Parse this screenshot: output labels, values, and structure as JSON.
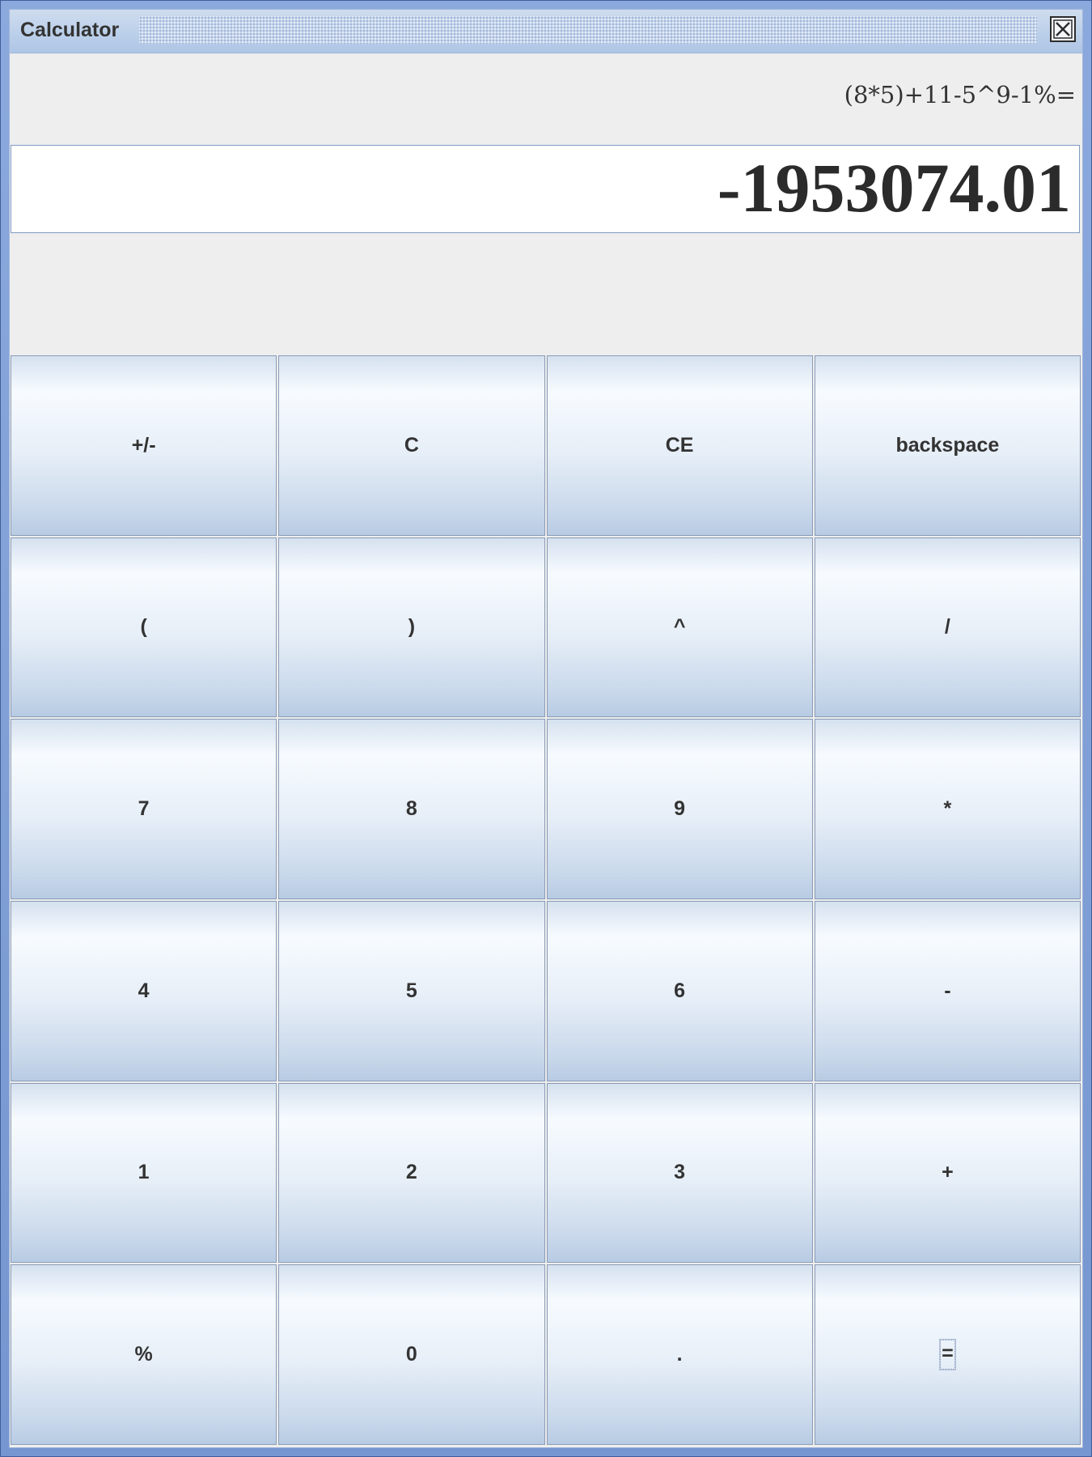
{
  "window": {
    "title": "Calculator"
  },
  "expression": {
    "text": "(8*5)+11-5^9-1%="
  },
  "display": {
    "value": "-1953074.01"
  },
  "keypad": {
    "keys": [
      {
        "label": "+/-",
        "name": "negate-button"
      },
      {
        "label": "C",
        "name": "clear-button"
      },
      {
        "label": "CE",
        "name": "clear-entry-button"
      },
      {
        "label": "backspace",
        "name": "backspace-button"
      },
      {
        "label": "(",
        "name": "open-paren-button"
      },
      {
        "label": ")",
        "name": "close-paren-button"
      },
      {
        "label": "^",
        "name": "power-button"
      },
      {
        "label": "/",
        "name": "divide-button"
      },
      {
        "label": "7",
        "name": "digit-7-button"
      },
      {
        "label": "8",
        "name": "digit-8-button"
      },
      {
        "label": "9",
        "name": "digit-9-button"
      },
      {
        "label": "*",
        "name": "multiply-button"
      },
      {
        "label": "4",
        "name": "digit-4-button"
      },
      {
        "label": "5",
        "name": "digit-5-button"
      },
      {
        "label": "6",
        "name": "digit-6-button"
      },
      {
        "label": "-",
        "name": "subtract-button"
      },
      {
        "label": "1",
        "name": "digit-1-button"
      },
      {
        "label": "2",
        "name": "digit-2-button"
      },
      {
        "label": "3",
        "name": "digit-3-button"
      },
      {
        "label": "+",
        "name": "add-button"
      },
      {
        "label": "%",
        "name": "percent-button"
      },
      {
        "label": "0",
        "name": "digit-0-button"
      },
      {
        "label": ".",
        "name": "decimal-button"
      },
      {
        "label": "=",
        "name": "equals-button",
        "focused": true
      }
    ]
  }
}
